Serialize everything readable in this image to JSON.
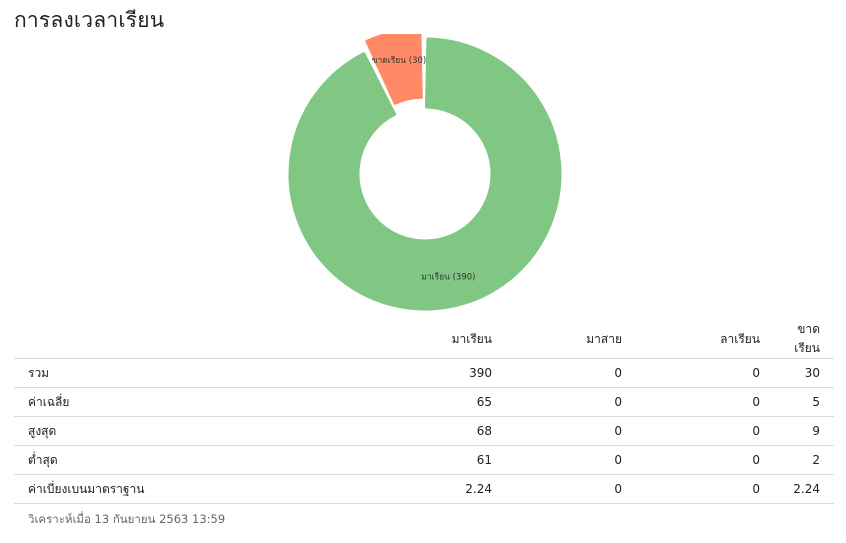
{
  "page": {
    "title": "การลงเวลาเรียน"
  },
  "chart_data": {
    "type": "pie",
    "slices": [
      {
        "label": "มาเรียน (390)",
        "name": "มาเรียน",
        "value": 390,
        "color": "#81c784"
      },
      {
        "label": "ขาดเรียน (30)",
        "name": "ขาดเรียน",
        "value": 30,
        "color": "#ff8a65"
      }
    ]
  },
  "table": {
    "headers": [
      "",
      "มาเรียน",
      "มาสาย",
      "ลาเรียน",
      "ขาดเรียน"
    ],
    "rows": [
      {
        "label": "รวม",
        "values": [
          "390",
          "0",
          "0",
          "30"
        ]
      },
      {
        "label": "ค่าเฉลี่ย",
        "values": [
          "65",
          "0",
          "0",
          "5"
        ]
      },
      {
        "label": "สูงสุด",
        "values": [
          "68",
          "0",
          "0",
          "9"
        ]
      },
      {
        "label": "ต่ำสุด",
        "values": [
          "61",
          "0",
          "0",
          "2"
        ]
      },
      {
        "label": "ค่าเบี่ยงเบนมาตราฐาน",
        "values": [
          "2.24",
          "0",
          "0",
          "2.24"
        ]
      }
    ]
  },
  "footer": {
    "analyzed_at": "วิเคราะห์เมื่อ 13 กันยายน 2563 13:59"
  }
}
